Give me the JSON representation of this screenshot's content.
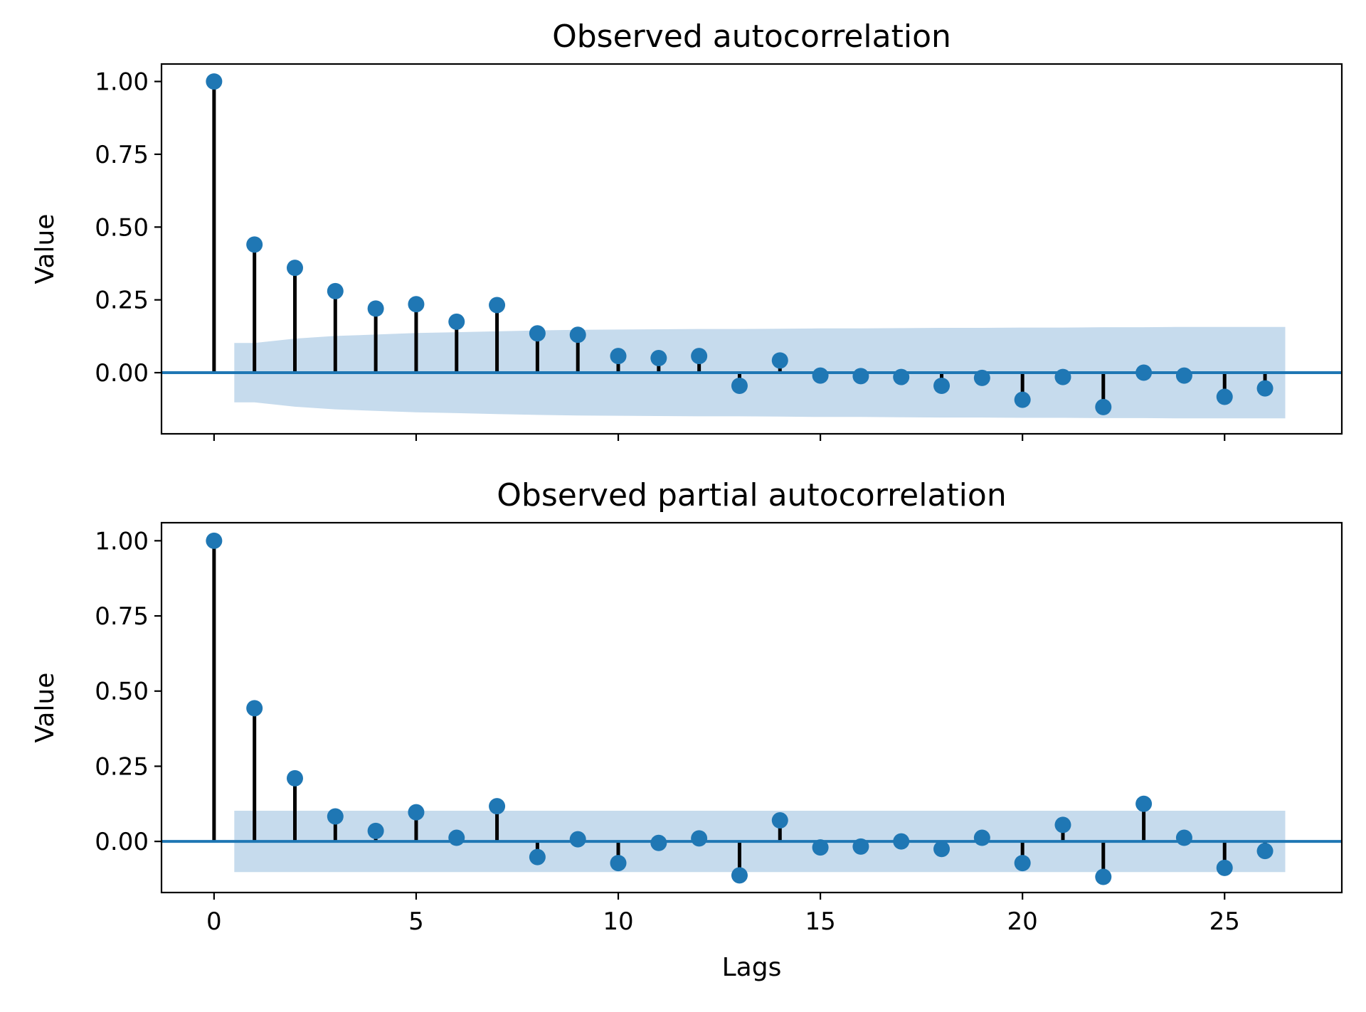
{
  "colors": {
    "marker": "#1f77b4",
    "confidence_band": "#c6dbed",
    "stem": "#000000"
  },
  "chart_data": [
    {
      "type": "scatter",
      "style": "stem",
      "title": "Observed autocorrelation",
      "xlabel": "",
      "ylabel": "Value",
      "xlim": [
        -1.3,
        27.9
      ],
      "ylim": [
        -0.21,
        1.06
      ],
      "xticks": [
        0,
        5,
        10,
        15,
        20,
        25
      ],
      "yticks": [
        0.0,
        0.25,
        0.5,
        0.75,
        1.0
      ],
      "ytick_labels": [
        "0.00",
        "0.25",
        "0.50",
        "0.75",
        "1.00"
      ],
      "show_xtick_labels": false,
      "grid": false,
      "x": [
        0,
        1,
        2,
        3,
        4,
        5,
        6,
        7,
        8,
        9,
        10,
        11,
        12,
        13,
        14,
        15,
        16,
        17,
        18,
        19,
        20,
        21,
        22,
        23,
        24,
        25,
        26
      ],
      "values": [
        1.0,
        0.44,
        0.36,
        0.28,
        0.22,
        0.235,
        0.175,
        0.232,
        0.135,
        0.13,
        0.057,
        0.05,
        0.057,
        -0.045,
        0.042,
        -0.01,
        -0.012,
        -0.015,
        -0.045,
        -0.018,
        -0.093,
        -0.015,
        -0.118,
        0.0,
        -0.01,
        -0.083,
        -0.054
      ],
      "confidence_band": {
        "x": [
          0.5,
          1,
          2,
          3,
          4,
          5,
          6,
          7,
          8,
          9,
          10,
          11,
          12,
          13,
          14,
          15,
          16,
          17,
          18,
          19,
          20,
          21,
          22,
          23,
          24,
          25,
          26,
          26.5
        ],
        "upper": [
          0.102,
          0.102,
          0.117,
          0.126,
          0.131,
          0.136,
          0.139,
          0.142,
          0.145,
          0.147,
          0.148,
          0.149,
          0.15,
          0.15,
          0.151,
          0.152,
          0.152,
          0.153,
          0.154,
          0.154,
          0.155,
          0.155,
          0.156,
          0.156,
          0.157,
          0.157,
          0.157,
          0.157
        ]
      }
    },
    {
      "type": "scatter",
      "style": "stem",
      "title": "Observed partial autocorrelation",
      "xlabel": "Lags",
      "ylabel": "Value",
      "xlim": [
        -1.3,
        27.9
      ],
      "ylim": [
        -0.17,
        1.06
      ],
      "xticks": [
        0,
        5,
        10,
        15,
        20,
        25
      ],
      "yticks": [
        0.0,
        0.25,
        0.5,
        0.75,
        1.0
      ],
      "ytick_labels": [
        "0.00",
        "0.25",
        "0.50",
        "0.75",
        "1.00"
      ],
      "show_xtick_labels": true,
      "grid": false,
      "x": [
        0,
        1,
        2,
        3,
        4,
        5,
        6,
        7,
        8,
        9,
        10,
        11,
        12,
        13,
        14,
        15,
        16,
        17,
        18,
        19,
        20,
        21,
        22,
        23,
        24,
        25,
        26
      ],
      "values": [
        1.0,
        0.443,
        0.21,
        0.083,
        0.035,
        0.097,
        0.012,
        0.117,
        -0.052,
        0.007,
        -0.072,
        -0.005,
        0.01,
        -0.113,
        0.07,
        -0.02,
        -0.017,
        0.0,
        -0.025,
        0.012,
        -0.072,
        0.055,
        -0.118,
        0.125,
        0.012,
        -0.088,
        -0.032
      ],
      "confidence_band": {
        "x": [
          0.5,
          26.5
        ],
        "upper": [
          0.102,
          0.102
        ]
      }
    }
  ]
}
